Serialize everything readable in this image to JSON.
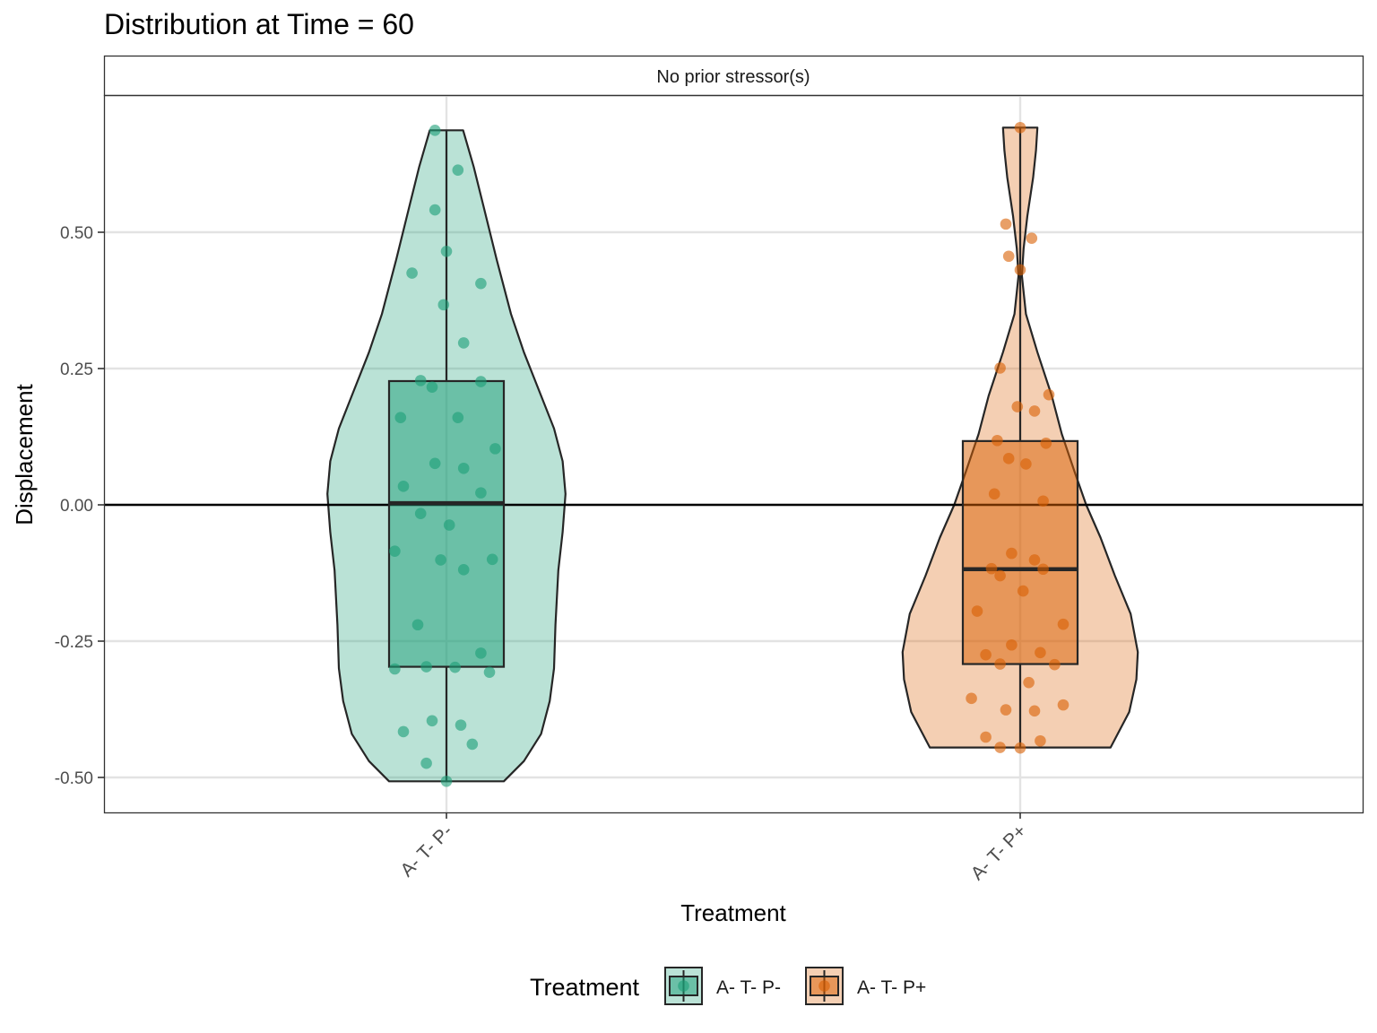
{
  "chart_data": {
    "type": "violin",
    "title": "Distribution at Time = 60",
    "facet_label": "No prior stressor(s)",
    "xlabel": "Treatment",
    "ylabel": "Displacement",
    "categories": [
      "A- T- P-",
      "A- T- P+"
    ],
    "ylim": [
      -0.56,
      0.75
    ],
    "yticks": [
      0.5,
      0.25,
      0.0,
      -0.25,
      -0.5
    ],
    "ytick_labels": [
      "0.50",
      "0.25",
      "0.00",
      "-0.25",
      "-0.50"
    ],
    "hline": 0,
    "grid": true,
    "legend": {
      "title": "Treatment",
      "position": "bottom",
      "entries": [
        "A- T- P-",
        "A- T- P+"
      ]
    },
    "colors": {
      "A- T- P-": "#1B9E77",
      "A- T- P+": "#D95F02"
    },
    "series": [
      {
        "name": "A- T- P-",
        "color": "#1B9E77",
        "box": {
          "q1": -0.297,
          "median": 0.003,
          "q3": 0.227,
          "whisker_low": -0.507,
          "whisker_high": 0.687
        },
        "violin": [
          [
            -0.507,
            0.2
          ],
          [
            -0.47,
            0.27
          ],
          [
            -0.42,
            0.33
          ],
          [
            -0.36,
            0.36
          ],
          [
            -0.3,
            0.375
          ],
          [
            -0.22,
            0.38
          ],
          [
            -0.12,
            0.39
          ],
          [
            -0.05,
            0.405
          ],
          [
            0.02,
            0.415
          ],
          [
            0.08,
            0.405
          ],
          [
            0.14,
            0.375
          ],
          [
            0.2,
            0.33
          ],
          [
            0.28,
            0.27
          ],
          [
            0.35,
            0.225
          ],
          [
            0.45,
            0.175
          ],
          [
            0.55,
            0.128
          ],
          [
            0.62,
            0.095
          ],
          [
            0.687,
            0.058
          ]
        ],
        "points": [
          [
            -0.04,
            0.687
          ],
          [
            0.04,
            0.614
          ],
          [
            -0.04,
            0.541
          ],
          [
            0.0,
            0.465
          ],
          [
            -0.12,
            0.425
          ],
          [
            0.12,
            0.406
          ],
          [
            -0.01,
            0.367
          ],
          [
            0.06,
            0.297
          ],
          [
            -0.09,
            0.228
          ],
          [
            0.12,
            0.226
          ],
          [
            -0.05,
            0.216
          ],
          [
            -0.16,
            0.16
          ],
          [
            0.04,
            0.16
          ],
          [
            0.17,
            0.103
          ],
          [
            -0.04,
            0.076
          ],
          [
            0.06,
            0.067
          ],
          [
            -0.15,
            0.034
          ],
          [
            0.12,
            0.022
          ],
          [
            -0.09,
            -0.016
          ],
          [
            0.01,
            -0.037
          ],
          [
            -0.18,
            -0.085
          ],
          [
            -0.02,
            -0.101
          ],
          [
            0.16,
            -0.1
          ],
          [
            0.06,
            -0.119
          ],
          [
            -0.1,
            -0.22
          ],
          [
            0.12,
            -0.272
          ],
          [
            -0.18,
            -0.301
          ],
          [
            -0.07,
            -0.297
          ],
          [
            0.03,
            -0.298
          ],
          [
            0.15,
            -0.307
          ],
          [
            -0.05,
            -0.396
          ],
          [
            0.05,
            -0.404
          ],
          [
            -0.15,
            -0.416
          ],
          [
            0.09,
            -0.439
          ],
          [
            -0.07,
            -0.474
          ],
          [
            0.0,
            -0.507
          ]
        ]
      },
      {
        "name": "A- T- P+",
        "color": "#D95F02",
        "box": {
          "q1": -0.292,
          "median": -0.118,
          "q3": 0.117,
          "whisker_low": -0.445,
          "whisker_high": 0.692
        },
        "violin": [
          [
            -0.445,
            0.315
          ],
          [
            -0.42,
            0.34
          ],
          [
            -0.38,
            0.38
          ],
          [
            -0.32,
            0.405
          ],
          [
            -0.27,
            0.41
          ],
          [
            -0.2,
            0.385
          ],
          [
            -0.13,
            0.33
          ],
          [
            -0.06,
            0.28
          ],
          [
            0.0,
            0.23
          ],
          [
            0.06,
            0.19
          ],
          [
            0.13,
            0.145
          ],
          [
            0.2,
            0.11
          ],
          [
            0.28,
            0.06
          ],
          [
            0.35,
            0.02
          ],
          [
            0.42,
            0.006
          ],
          [
            0.47,
            0.012
          ],
          [
            0.53,
            0.025
          ],
          [
            0.6,
            0.045
          ],
          [
            0.65,
            0.055
          ],
          [
            0.692,
            0.06
          ]
        ],
        "points": [
          [
            0.0,
            0.692
          ],
          [
            -0.05,
            0.515
          ],
          [
            0.04,
            0.489
          ],
          [
            -0.04,
            0.456
          ],
          [
            0.0,
            0.431
          ],
          [
            -0.07,
            0.251
          ],
          [
            0.1,
            0.202
          ],
          [
            -0.01,
            0.18
          ],
          [
            0.05,
            0.172
          ],
          [
            -0.08,
            0.118
          ],
          [
            0.09,
            0.113
          ],
          [
            -0.04,
            0.085
          ],
          [
            0.02,
            0.075
          ],
          [
            -0.09,
            0.02
          ],
          [
            0.08,
            0.007
          ],
          [
            -0.03,
            -0.089
          ],
          [
            0.05,
            -0.101
          ],
          [
            -0.1,
            -0.117
          ],
          [
            0.08,
            -0.118
          ],
          [
            -0.07,
            -0.13
          ],
          [
            0.01,
            -0.158
          ],
          [
            -0.15,
            -0.195
          ],
          [
            0.15,
            -0.219
          ],
          [
            -0.12,
            -0.275
          ],
          [
            -0.03,
            -0.257
          ],
          [
            0.07,
            -0.271
          ],
          [
            -0.07,
            -0.292
          ],
          [
            0.12,
            -0.293
          ],
          [
            0.03,
            -0.326
          ],
          [
            -0.17,
            -0.355
          ],
          [
            0.15,
            -0.367
          ],
          [
            -0.05,
            -0.376
          ],
          [
            0.05,
            -0.378
          ],
          [
            -0.12,
            -0.426
          ],
          [
            0.07,
            -0.433
          ],
          [
            -0.07,
            -0.445
          ],
          [
            0.0,
            -0.446
          ]
        ]
      }
    ]
  }
}
